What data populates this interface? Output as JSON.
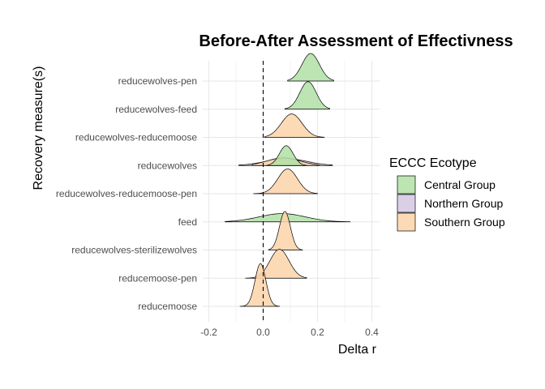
{
  "chart_data": {
    "type": "ridgeline",
    "title": "Before-After Assessment of Effectivness",
    "xlabel": "Delta r",
    "ylabel": "Recovery measure(s)",
    "xlim": [
      -0.2,
      0.4
    ],
    "x_ticks": [
      -0.2,
      0,
      0.2,
      0.4
    ],
    "x_tick_labels": [
      "-0.2",
      "0.0",
      "0.2",
      "0.4"
    ],
    "reference_line": {
      "x": 0,
      "style": "dashed"
    },
    "categories": [
      "reducewolves-pen",
      "reducewolves-feed",
      "reducewolves-reducemoose",
      "reducewolves",
      "reducewolves-reducemoose-pen",
      "feed",
      "reducewolves-sterilizewolves",
      "reducemoose-pen",
      "reducemoose"
    ],
    "legend": {
      "title": "ECCC Ecotype",
      "position": "right",
      "items": [
        {
          "name": "Central Group",
          "color": "#b2dfa6"
        },
        {
          "name": "Northern Group",
          "color": "#d4c8e2"
        },
        {
          "name": "Southern Group",
          "color": "#fdd4a9"
        }
      ]
    },
    "series": [
      {
        "category": "reducewolves-pen",
        "group": "Central Group",
        "mean": 0.175,
        "sd": 0.032,
        "min": 0.09,
        "max": 0.26,
        "rel_height": 1.0
      },
      {
        "category": "reducewolves-feed",
        "group": "Central Group",
        "mean": 0.165,
        "sd": 0.03,
        "min": 0.08,
        "max": 0.245,
        "rel_height": 1.0
      },
      {
        "category": "reducewolves-reducemoose",
        "group": "Southern Group",
        "mean": 0.105,
        "sd": 0.038,
        "min": 0.005,
        "max": 0.225,
        "rel_height": 0.85
      },
      {
        "category": "reducewolves",
        "group": "Northern Group",
        "mean": 0.085,
        "sd": 0.075,
        "min": -0.09,
        "max": 0.255,
        "rel_height": 0.25
      },
      {
        "category": "reducewolves",
        "group": "Southern Group",
        "mean": 0.075,
        "sd": 0.06,
        "min": -0.04,
        "max": 0.205,
        "rel_height": 0.28
      },
      {
        "category": "reducewolves",
        "group": "Central Group",
        "mean": 0.085,
        "sd": 0.025,
        "min": 0.015,
        "max": 0.16,
        "rel_height": 0.72
      },
      {
        "category": "reducewolves-reducemoose-pen",
        "group": "Southern Group",
        "mean": 0.09,
        "sd": 0.036,
        "min": -0.035,
        "max": 0.2,
        "rel_height": 0.9
      },
      {
        "category": "feed",
        "group": "Central Group",
        "mean": 0.07,
        "sd": 0.085,
        "min": -0.14,
        "max": 0.32,
        "rel_height": 0.3
      },
      {
        "category": "reducewolves-sterilizewolves",
        "group": "Southern Group",
        "mean": 0.08,
        "sd": 0.02,
        "min": 0.02,
        "max": 0.145,
        "rel_height": 1.4
      },
      {
        "category": "reducemoose-pen",
        "group": "Southern Group",
        "mean": 0.06,
        "sd": 0.035,
        "min": -0.065,
        "max": 0.16,
        "rel_height": 1.05
      },
      {
        "category": "reducemoose",
        "group": "Southern Group",
        "mean": -0.01,
        "sd": 0.02,
        "min": -0.085,
        "max": 0.06,
        "rel_height": 1.55
      }
    ]
  }
}
